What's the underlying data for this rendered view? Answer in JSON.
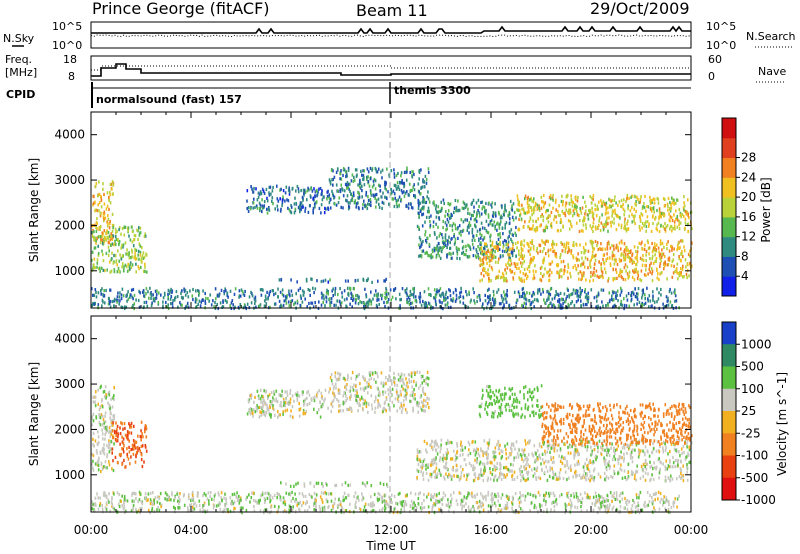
{
  "header": {
    "station": "Prince George (fitACF)",
    "beam": "Beam 11",
    "date": "29/Oct/2009"
  },
  "noise_panel": {
    "left_label": "N.Sky",
    "right_label": "N.Search",
    "left_ticks": [
      "10^5",
      "10^0"
    ],
    "right_ticks": [
      "10^5",
      "10^0"
    ]
  },
  "freq_panel": {
    "left_label_1": "Freq.",
    "left_label_2": "[MHz]",
    "right_label": "Nave",
    "left_ticks": [
      "18",
      "8"
    ],
    "right_ticks": [
      "60",
      "0"
    ]
  },
  "cpid_panel": {
    "label": "CPID",
    "programs": [
      {
        "name": "normalsound (fast) 157",
        "start_hour": 0
      },
      {
        "name": "themis 3300",
        "start_hour": 12
      }
    ]
  },
  "time_axis": {
    "label": "Time UT",
    "ticks": [
      "00:00",
      "04:00",
      "08:00",
      "12:00",
      "16:00",
      "20:00",
      "00:00"
    ]
  },
  "chart_data": [
    {
      "type": "heatmap",
      "name": "power",
      "ylabel": "Slant Range [km]",
      "xlim": [
        0,
        24
      ],
      "ylim": [
        180,
        4500
      ],
      "yticks": [
        "1000",
        "2000",
        "3000",
        "4000"
      ],
      "colorbar": {
        "label": "Power [dB]",
        "ticks": [
          "4",
          "8",
          "12",
          "16",
          "20",
          "24",
          "28"
        ],
        "colors": [
          "#1020e8",
          "#1e4fb4",
          "#2f8a80",
          "#57b84f",
          "#b9d23a",
          "#f0c020",
          "#f08020",
          "#e04020",
          "#d01010"
        ]
      },
      "regions": [
        {
          "t0": 0.0,
          "t1": 0.9,
          "r0": 1600,
          "r1": 3000,
          "level": 20
        },
        {
          "t0": 0.0,
          "t1": 2.2,
          "r0": 1000,
          "r1": 2000,
          "level": 14
        },
        {
          "t0": 6.2,
          "t1": 9.5,
          "r0": 2300,
          "r1": 2900,
          "level": 6
        },
        {
          "t0": 9.5,
          "t1": 13.5,
          "r0": 2400,
          "r1": 3300,
          "level": 7
        },
        {
          "t0": 7.5,
          "t1": 12.0,
          "r0": 780,
          "r1": 860,
          "level": 6
        },
        {
          "t0": 0.0,
          "t1": 23.5,
          "r0": 200,
          "r1": 650,
          "level": 7
        },
        {
          "t0": 13.0,
          "t1": 17.0,
          "r0": 1300,
          "r1": 2600,
          "level": 9
        },
        {
          "t0": 15.5,
          "t1": 24.0,
          "r0": 800,
          "r1": 1700,
          "level": 20
        },
        {
          "t0": 17.0,
          "t1": 24.0,
          "r0": 1900,
          "r1": 2700,
          "level": 18
        }
      ]
    },
    {
      "type": "heatmap",
      "name": "velocity",
      "ylabel": "Slant Range [km]",
      "xlim": [
        0,
        24
      ],
      "ylim": [
        180,
        4500
      ],
      "yticks": [
        "1000",
        "2000",
        "3000",
        "4000"
      ],
      "colorbar": {
        "label": "Velocity [m s^-1]",
        "ticks": [
          "1000",
          "500",
          "100",
          "25",
          "-25",
          "-100",
          "-500",
          "-1000"
        ],
        "colors": [
          "#1840c8",
          "#2f8a64",
          "#5cc040",
          "#c8c8c0",
          "#f0b020",
          "#f08020",
          "#e84010",
          "#e01010"
        ]
      },
      "regions": [
        {
          "t0": 0.0,
          "t1": 0.9,
          "r0": 1100,
          "r1": 3000,
          "level": 0
        },
        {
          "t0": 0.8,
          "t1": 2.2,
          "r0": 1200,
          "r1": 2200,
          "level": -300
        },
        {
          "t0": 6.2,
          "t1": 9.5,
          "r0": 2300,
          "r1": 2900,
          "level": 0
        },
        {
          "t0": 9.5,
          "t1": 13.5,
          "r0": 2400,
          "r1": 3300,
          "level": 0
        },
        {
          "t0": 7.5,
          "t1": 12.0,
          "r0": 780,
          "r1": 860,
          "level": 80
        },
        {
          "t0": 0.0,
          "t1": 23.5,
          "r0": 200,
          "r1": 650,
          "level": 20
        },
        {
          "t0": 13.0,
          "t1": 24.0,
          "r0": 900,
          "r1": 1800,
          "level": 0
        },
        {
          "t0": 15.5,
          "t1": 18.0,
          "r0": 2300,
          "r1": 3000,
          "level": 150
        },
        {
          "t0": 18.0,
          "t1": 24.0,
          "r0": 1700,
          "r1": 2600,
          "level": -200
        }
      ]
    }
  ]
}
